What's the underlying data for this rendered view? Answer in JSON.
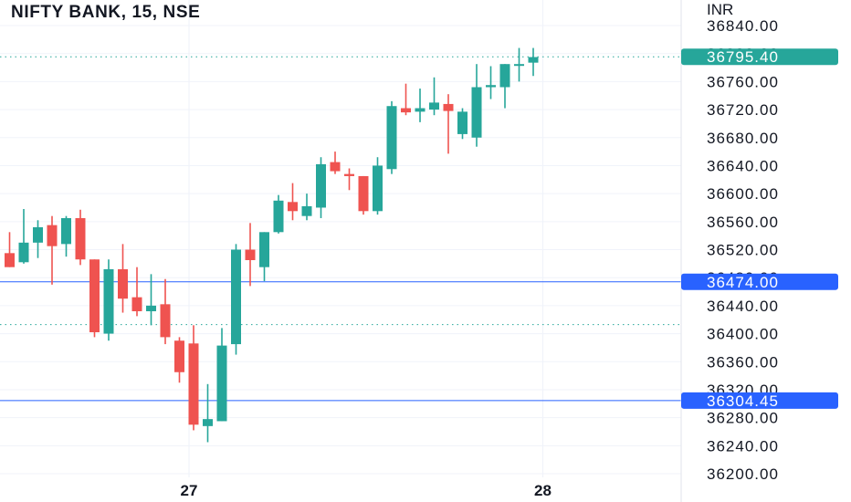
{
  "header": {
    "title": "NIFTY BANK, 15, NSE",
    "currency": "INR"
  },
  "colors": {
    "up": "#26a69a",
    "down": "#ef5350",
    "grid": "#f0f3fa",
    "price_line": "#26a69a",
    "level_line": "#2962ff",
    "dotted_line": "#26a69a"
  },
  "chart_data": {
    "type": "candlestick",
    "ylim": [
      36200,
      36860
    ],
    "y_ticks": [
      36200,
      36240,
      36280,
      36320,
      36360,
      36400,
      36440,
      36480,
      36520,
      36560,
      36600,
      36640,
      36680,
      36720,
      36760,
      36800,
      36840
    ],
    "y_tick_labels": [
      "36200.00",
      "36240.00",
      "36280.00",
      "36320.00",
      "36360.00",
      "36400.00",
      "36440.00",
      "36480.00",
      "36520.00",
      "36560.00",
      "36600.00",
      "36640.00",
      "36680.00",
      "36720.00",
      "36760.00",
      "36800.00",
      "36840.00"
    ],
    "x_ticks": [
      {
        "label": "27",
        "index": 13
      },
      {
        "label": "28",
        "index": 38
      }
    ],
    "candles": [
      {
        "o": 36515,
        "h": 36545,
        "l": 36495,
        "c": 36495
      },
      {
        "o": 36502,
        "h": 36578,
        "l": 36500,
        "c": 36530
      },
      {
        "o": 36530,
        "h": 36562,
        "l": 36508,
        "c": 36552
      },
      {
        "o": 36555,
        "h": 36568,
        "l": 36470,
        "c": 36525
      },
      {
        "o": 36528,
        "h": 36568,
        "l": 36510,
        "c": 36565
      },
      {
        "o": 36565,
        "h": 36577,
        "l": 36498,
        "c": 36506
      },
      {
        "o": 36506,
        "h": 36506,
        "l": 36395,
        "c": 36402
      },
      {
        "o": 36400,
        "h": 36506,
        "l": 36390,
        "c": 36492
      },
      {
        "o": 36492,
        "h": 36528,
        "l": 36430,
        "c": 36450
      },
      {
        "o": 36452,
        "h": 36495,
        "l": 36425,
        "c": 36432
      },
      {
        "o": 36432,
        "h": 36485,
        "l": 36412,
        "c": 36440
      },
      {
        "o": 36442,
        "h": 36478,
        "l": 36385,
        "c": 36395
      },
      {
        "o": 36390,
        "h": 36395,
        "l": 36330,
        "c": 36345
      },
      {
        "o": 36386,
        "h": 36412,
        "l": 36262,
        "c": 36270
      },
      {
        "o": 36268,
        "h": 36328,
        "l": 36245,
        "c": 36278
      },
      {
        "o": 36275,
        "h": 36408,
        "l": 36275,
        "c": 36383
      },
      {
        "o": 36385,
        "h": 36528,
        "l": 36370,
        "c": 36520
      },
      {
        "o": 36520,
        "h": 36558,
        "l": 36468,
        "c": 36505
      },
      {
        "o": 36495,
        "h": 36545,
        "l": 36475,
        "c": 36545
      },
      {
        "o": 36545,
        "h": 36598,
        "l": 36543,
        "c": 36590
      },
      {
        "o": 36588,
        "h": 36615,
        "l": 36562,
        "c": 36575
      },
      {
        "o": 36568,
        "h": 36600,
        "l": 36562,
        "c": 36582
      },
      {
        "o": 36580,
        "h": 36652,
        "l": 36565,
        "c": 36642
      },
      {
        "o": 36645,
        "h": 36660,
        "l": 36628,
        "c": 36632
      },
      {
        "o": 36628,
        "h": 36636,
        "l": 36605,
        "c": 36625
      },
      {
        "o": 36625,
        "h": 36625,
        "l": 36570,
        "c": 36575
      },
      {
        "o": 36575,
        "h": 36652,
        "l": 36570,
        "c": 36640
      },
      {
        "o": 36635,
        "h": 36732,
        "l": 36628,
        "c": 36725
      },
      {
        "o": 36722,
        "h": 36757,
        "l": 36712,
        "c": 36716
      },
      {
        "o": 36717,
        "h": 36750,
        "l": 36702,
        "c": 36722
      },
      {
        "o": 36720,
        "h": 36766,
        "l": 36712,
        "c": 36730
      },
      {
        "o": 36728,
        "h": 36742,
        "l": 36657,
        "c": 36718
      },
      {
        "o": 36685,
        "h": 36722,
        "l": 36678,
        "c": 36717
      },
      {
        "o": 36680,
        "h": 36785,
        "l": 36667,
        "c": 36752
      },
      {
        "o": 36752,
        "h": 36782,
        "l": 36735,
        "c": 36755
      },
      {
        "o": 36752,
        "h": 36785,
        "l": 36722,
        "c": 36785
      },
      {
        "o": 36783,
        "h": 36808,
        "l": 36760,
        "c": 36785
      },
      {
        "o": 36787,
        "h": 36808,
        "l": 36768,
        "c": 36795
      }
    ],
    "last_price": {
      "value": 36795.4,
      "label": "36795.40"
    },
    "levels": [
      {
        "value": 36474.0,
        "label": "36474.00",
        "style": "solid"
      },
      {
        "value": 36304.45,
        "label": "36304.45",
        "style": "solid"
      }
    ],
    "dotted_levels": [
      36413
    ]
  }
}
